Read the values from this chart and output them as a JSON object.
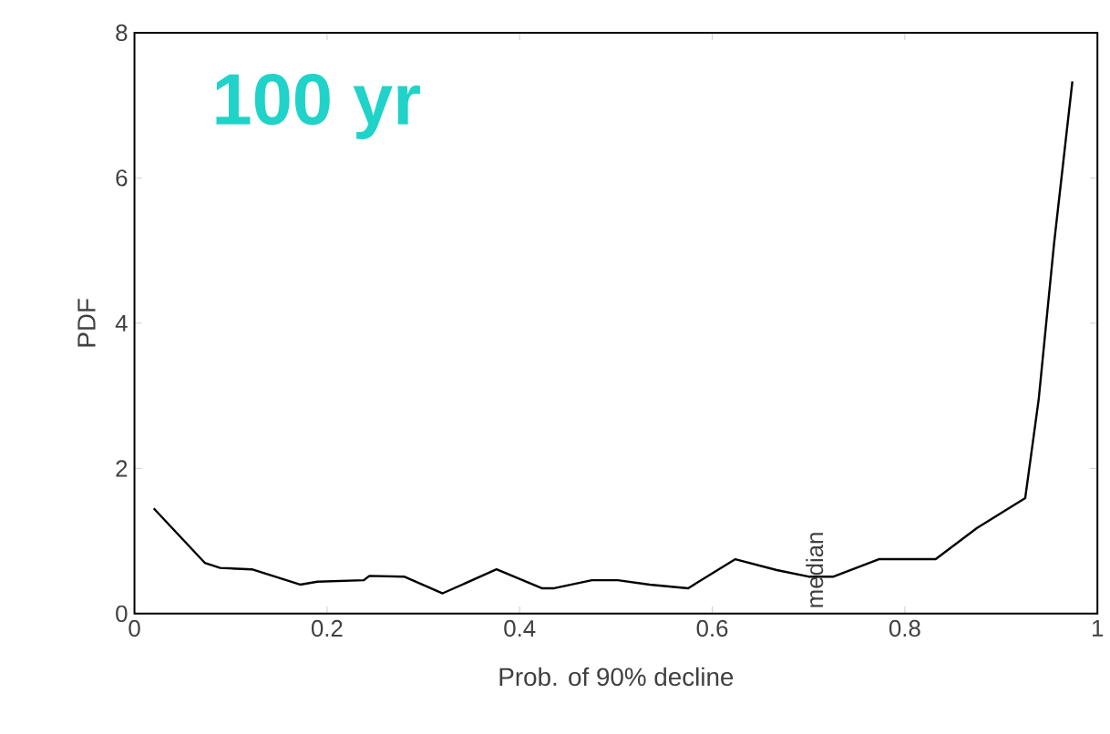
{
  "chart_data": {
    "type": "line",
    "title": "100 yr",
    "xlabel": "Prob. of 90% decline",
    "ylabel": "PDF",
    "x": [
      0.02,
      0.073,
      0.089,
      0.122,
      0.172,
      0.19,
      0.238,
      0.244,
      0.28,
      0.32,
      0.376,
      0.423,
      0.436,
      0.475,
      0.502,
      0.535,
      0.575,
      0.624,
      0.667,
      0.7,
      0.726,
      0.773,
      0.832,
      0.875,
      0.925,
      0.939,
      0.955,
      0.974
    ],
    "series": [
      {
        "color": "#000000",
        "values": [
          1.45,
          0.7,
          0.63,
          0.61,
          0.4,
          0.44,
          0.46,
          0.52,
          0.51,
          0.28,
          0.61,
          0.35,
          0.35,
          0.46,
          0.46,
          0.4,
          0.35,
          0.75,
          0.6,
          0.51,
          0.51,
          0.75,
          0.75,
          1.18,
          1.59,
          2.95,
          5.1,
          7.33
        ]
      }
    ],
    "xlim": [
      0,
      1
    ],
    "ylim": [
      0,
      8
    ],
    "xticks": [
      0,
      0.2,
      0.4,
      0.6,
      0.8,
      1
    ],
    "yticks": [
      0,
      2,
      4,
      6,
      8
    ],
    "annotations": [
      "median"
    ],
    "marker": "none",
    "line_style": "solid"
  }
}
